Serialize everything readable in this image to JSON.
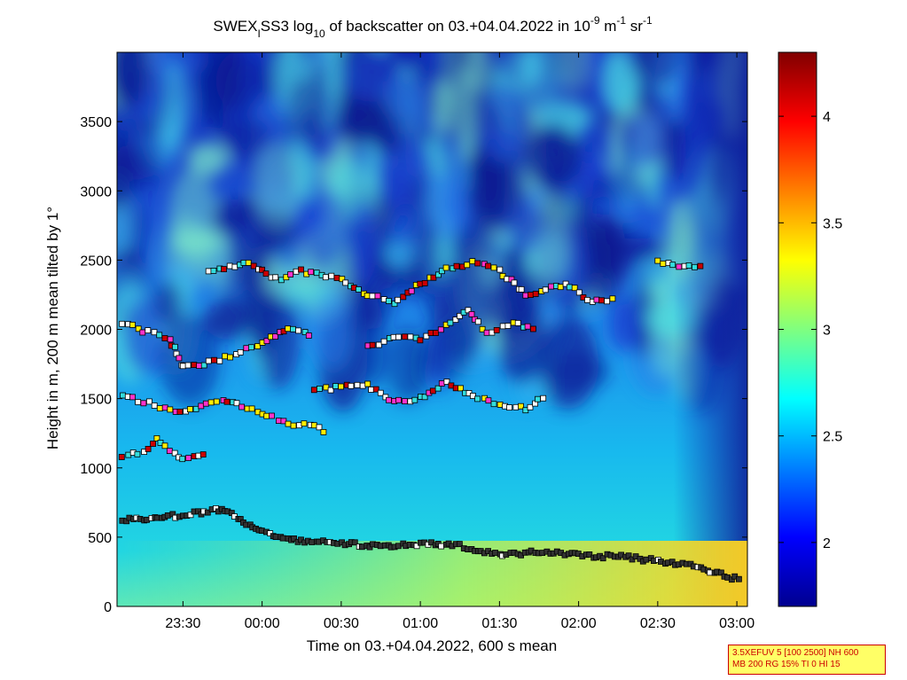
{
  "chart_data": {
    "type": "heatmap",
    "title": {
      "prefix": "SWEX",
      "sub1": "I",
      "mid1": "SS3 log",
      "sub2": "10",
      "mid2": " of backscatter on 03.+04.04.2022 in 10",
      "sup1": "-9",
      "mid3": " m",
      "sup2": "-1",
      "mid4": " sr",
      "sup3": "-1"
    },
    "xlabel": "Time on 03.+04.04.2022, 600 s mean",
    "ylabel": "Height in m, 200 m mean tilted by 1°",
    "x_ticks": [
      "23:30",
      "00:00",
      "00:30",
      "01:00",
      "01:30",
      "02:00",
      "02:30",
      "03:00"
    ],
    "y_ticks": [
      "0",
      "500",
      "1000",
      "1500",
      "2000",
      "2500",
      "3000",
      "3500"
    ],
    "xlim": [
      "23:05",
      "03:04"
    ],
    "ylim": [
      0,
      4000
    ],
    "colorbar": {
      "ticks": [
        "2",
        "2.5",
        "3",
        "3.5",
        "4"
      ],
      "range": [
        1.7,
        4.3
      ],
      "colormap": "jet"
    },
    "layers": [
      {
        "kind": "boundary-layer-top",
        "points": [
          [
            "23:07",
            620
          ],
          [
            "23:30",
            660
          ],
          [
            "23:45",
            700
          ],
          [
            "00:00",
            540
          ],
          [
            "00:15",
            470
          ],
          [
            "00:30",
            460
          ],
          [
            "00:45",
            430
          ],
          [
            "01:00",
            450
          ],
          [
            "01:15",
            440
          ],
          [
            "01:30",
            370
          ],
          [
            "01:45",
            390
          ],
          [
            "02:00",
            370
          ],
          [
            "02:15",
            360
          ],
          [
            "02:30",
            330
          ],
          [
            "02:45",
            290
          ],
          [
            "02:55",
            220
          ],
          [
            "03:02",
            190
          ]
        ]
      },
      {
        "kind": "cloud-layer",
        "points": [
          [
            "23:07",
            1080
          ],
          [
            "23:15",
            1120
          ],
          [
            "23:20",
            1200
          ],
          [
            "23:30",
            1070
          ],
          [
            "23:40",
            1120
          ]
        ]
      },
      {
        "kind": "cloud-layer",
        "points": [
          [
            "23:07",
            1520
          ],
          [
            "23:15",
            1480
          ],
          [
            "23:25",
            1410
          ],
          [
            "23:35",
            1430
          ],
          [
            "23:45",
            1490
          ],
          [
            "00:00",
            1390
          ],
          [
            "00:10",
            1320
          ],
          [
            "00:20",
            1300
          ],
          [
            "00:25",
            1260
          ]
        ]
      },
      {
        "kind": "cloud-layer",
        "points": [
          [
            "00:20",
            1560
          ],
          [
            "00:30",
            1580
          ],
          [
            "00:40",
            1600
          ],
          [
            "00:50",
            1470
          ],
          [
            "01:00",
            1500
          ],
          [
            "01:10",
            1620
          ],
          [
            "01:20",
            1520
          ],
          [
            "01:30",
            1450
          ],
          [
            "01:40",
            1430
          ],
          [
            "01:48",
            1540
          ]
        ]
      },
      {
        "kind": "cloud-layer",
        "points": [
          [
            "23:07",
            2050
          ],
          [
            "23:15",
            1990
          ],
          [
            "23:25",
            1930
          ],
          [
            "23:30",
            1720
          ],
          [
            "23:40",
            1760
          ],
          [
            "23:50",
            1820
          ],
          [
            "00:00",
            1900
          ],
          [
            "00:10",
            2020
          ],
          [
            "00:20",
            1930
          ]
        ]
      },
      {
        "kind": "cloud-layer",
        "points": [
          [
            "00:40",
            1880
          ],
          [
            "00:50",
            1940
          ],
          [
            "01:00",
            1930
          ],
          [
            "01:10",
            2020
          ],
          [
            "01:18",
            2140
          ],
          [
            "01:25",
            1980
          ],
          [
            "01:35",
            2040
          ],
          [
            "01:45",
            1990
          ]
        ]
      },
      {
        "kind": "cloud-layer",
        "points": [
          [
            "23:40",
            2430
          ],
          [
            "23:55",
            2470
          ],
          [
            "00:05",
            2360
          ],
          [
            "00:15",
            2420
          ],
          [
            "00:30",
            2360
          ],
          [
            "00:40",
            2250
          ],
          [
            "00:50",
            2190
          ],
          [
            "01:00",
            2330
          ],
          [
            "01:10",
            2440
          ],
          [
            "01:20",
            2480
          ],
          [
            "01:30",
            2420
          ],
          [
            "01:40",
            2250
          ],
          [
            "01:55",
            2330
          ],
          [
            "02:05",
            2200
          ],
          [
            "02:15",
            2230
          ]
        ]
      },
      {
        "kind": "cloud-layer",
        "points": [
          [
            "02:30",
            2480
          ],
          [
            "02:40",
            2460
          ],
          [
            "02:48",
            2450
          ]
        ]
      }
    ]
  },
  "params_box": {
    "line1": "3.5XEFUV 5 [100 2500] NH 600",
    "line2": "MB 200 RG 15% TI 0 HI 15"
  }
}
